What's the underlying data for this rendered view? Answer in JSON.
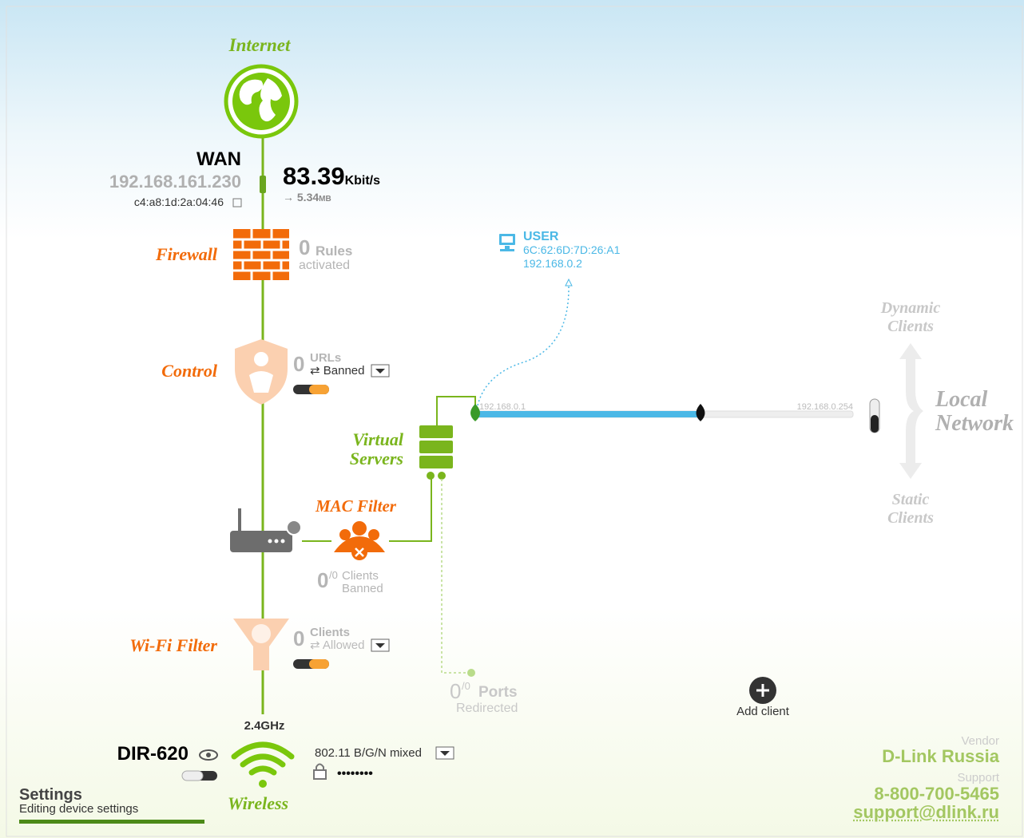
{
  "internet": {
    "label": "Internet"
  },
  "wan": {
    "title": "WAN",
    "ip": "192.168.161.230",
    "mac": "c4:a8:1d:2a:04:46"
  },
  "speed": {
    "value": "83.39",
    "unit": "Kbit/s",
    "traffic": "→ 5.34",
    "traffic_unit": "MB"
  },
  "firewall": {
    "label": "Firewall",
    "count": "0",
    "line1": "Rules",
    "line2": "activated"
  },
  "control": {
    "label": "Control",
    "count": "0",
    "line1": "URLs",
    "line2": "Banned"
  },
  "user": {
    "title": "USER",
    "mac": "6C:62:6D:7D:26:A1",
    "ip": "192.168.0.2"
  },
  "lan": {
    "start": "192.168.0.1",
    "end": "192.168.0.254"
  },
  "local_network": {
    "line1": "Local",
    "line2": "Network",
    "dynamic1": "Dynamic",
    "dynamic2": "Clients",
    "static1": "Static",
    "static2": "Clients"
  },
  "virtual_servers": {
    "line1": "Virtual",
    "line2": "Servers"
  },
  "mac_filter": {
    "label": "MAC Filter",
    "count": "0",
    "total": "/0",
    "line1": "Clients",
    "line2": "Banned"
  },
  "wifi_filter": {
    "label": "Wi-Fi Filter",
    "count": "0",
    "line1": "Clients",
    "line2": "Allowed"
  },
  "ports": {
    "count": "0",
    "total": "/0",
    "line1": "Ports",
    "line2": "Redirected"
  },
  "add_client": {
    "label": "Add client"
  },
  "wireless": {
    "band": "2.4GHz",
    "device": "DIR-620",
    "label": "Wireless",
    "mode": "802.11 B/G/N mixed",
    "password": "••••••••"
  },
  "settings": {
    "title": "Settings",
    "subtitle": "Editing device settings"
  },
  "vendor": {
    "vendor_label": "Vendor",
    "vendor": "D-Link Russia",
    "support_label": "Support",
    "phone": "8-800-700-5465",
    "email": "support@dlink.ru"
  }
}
